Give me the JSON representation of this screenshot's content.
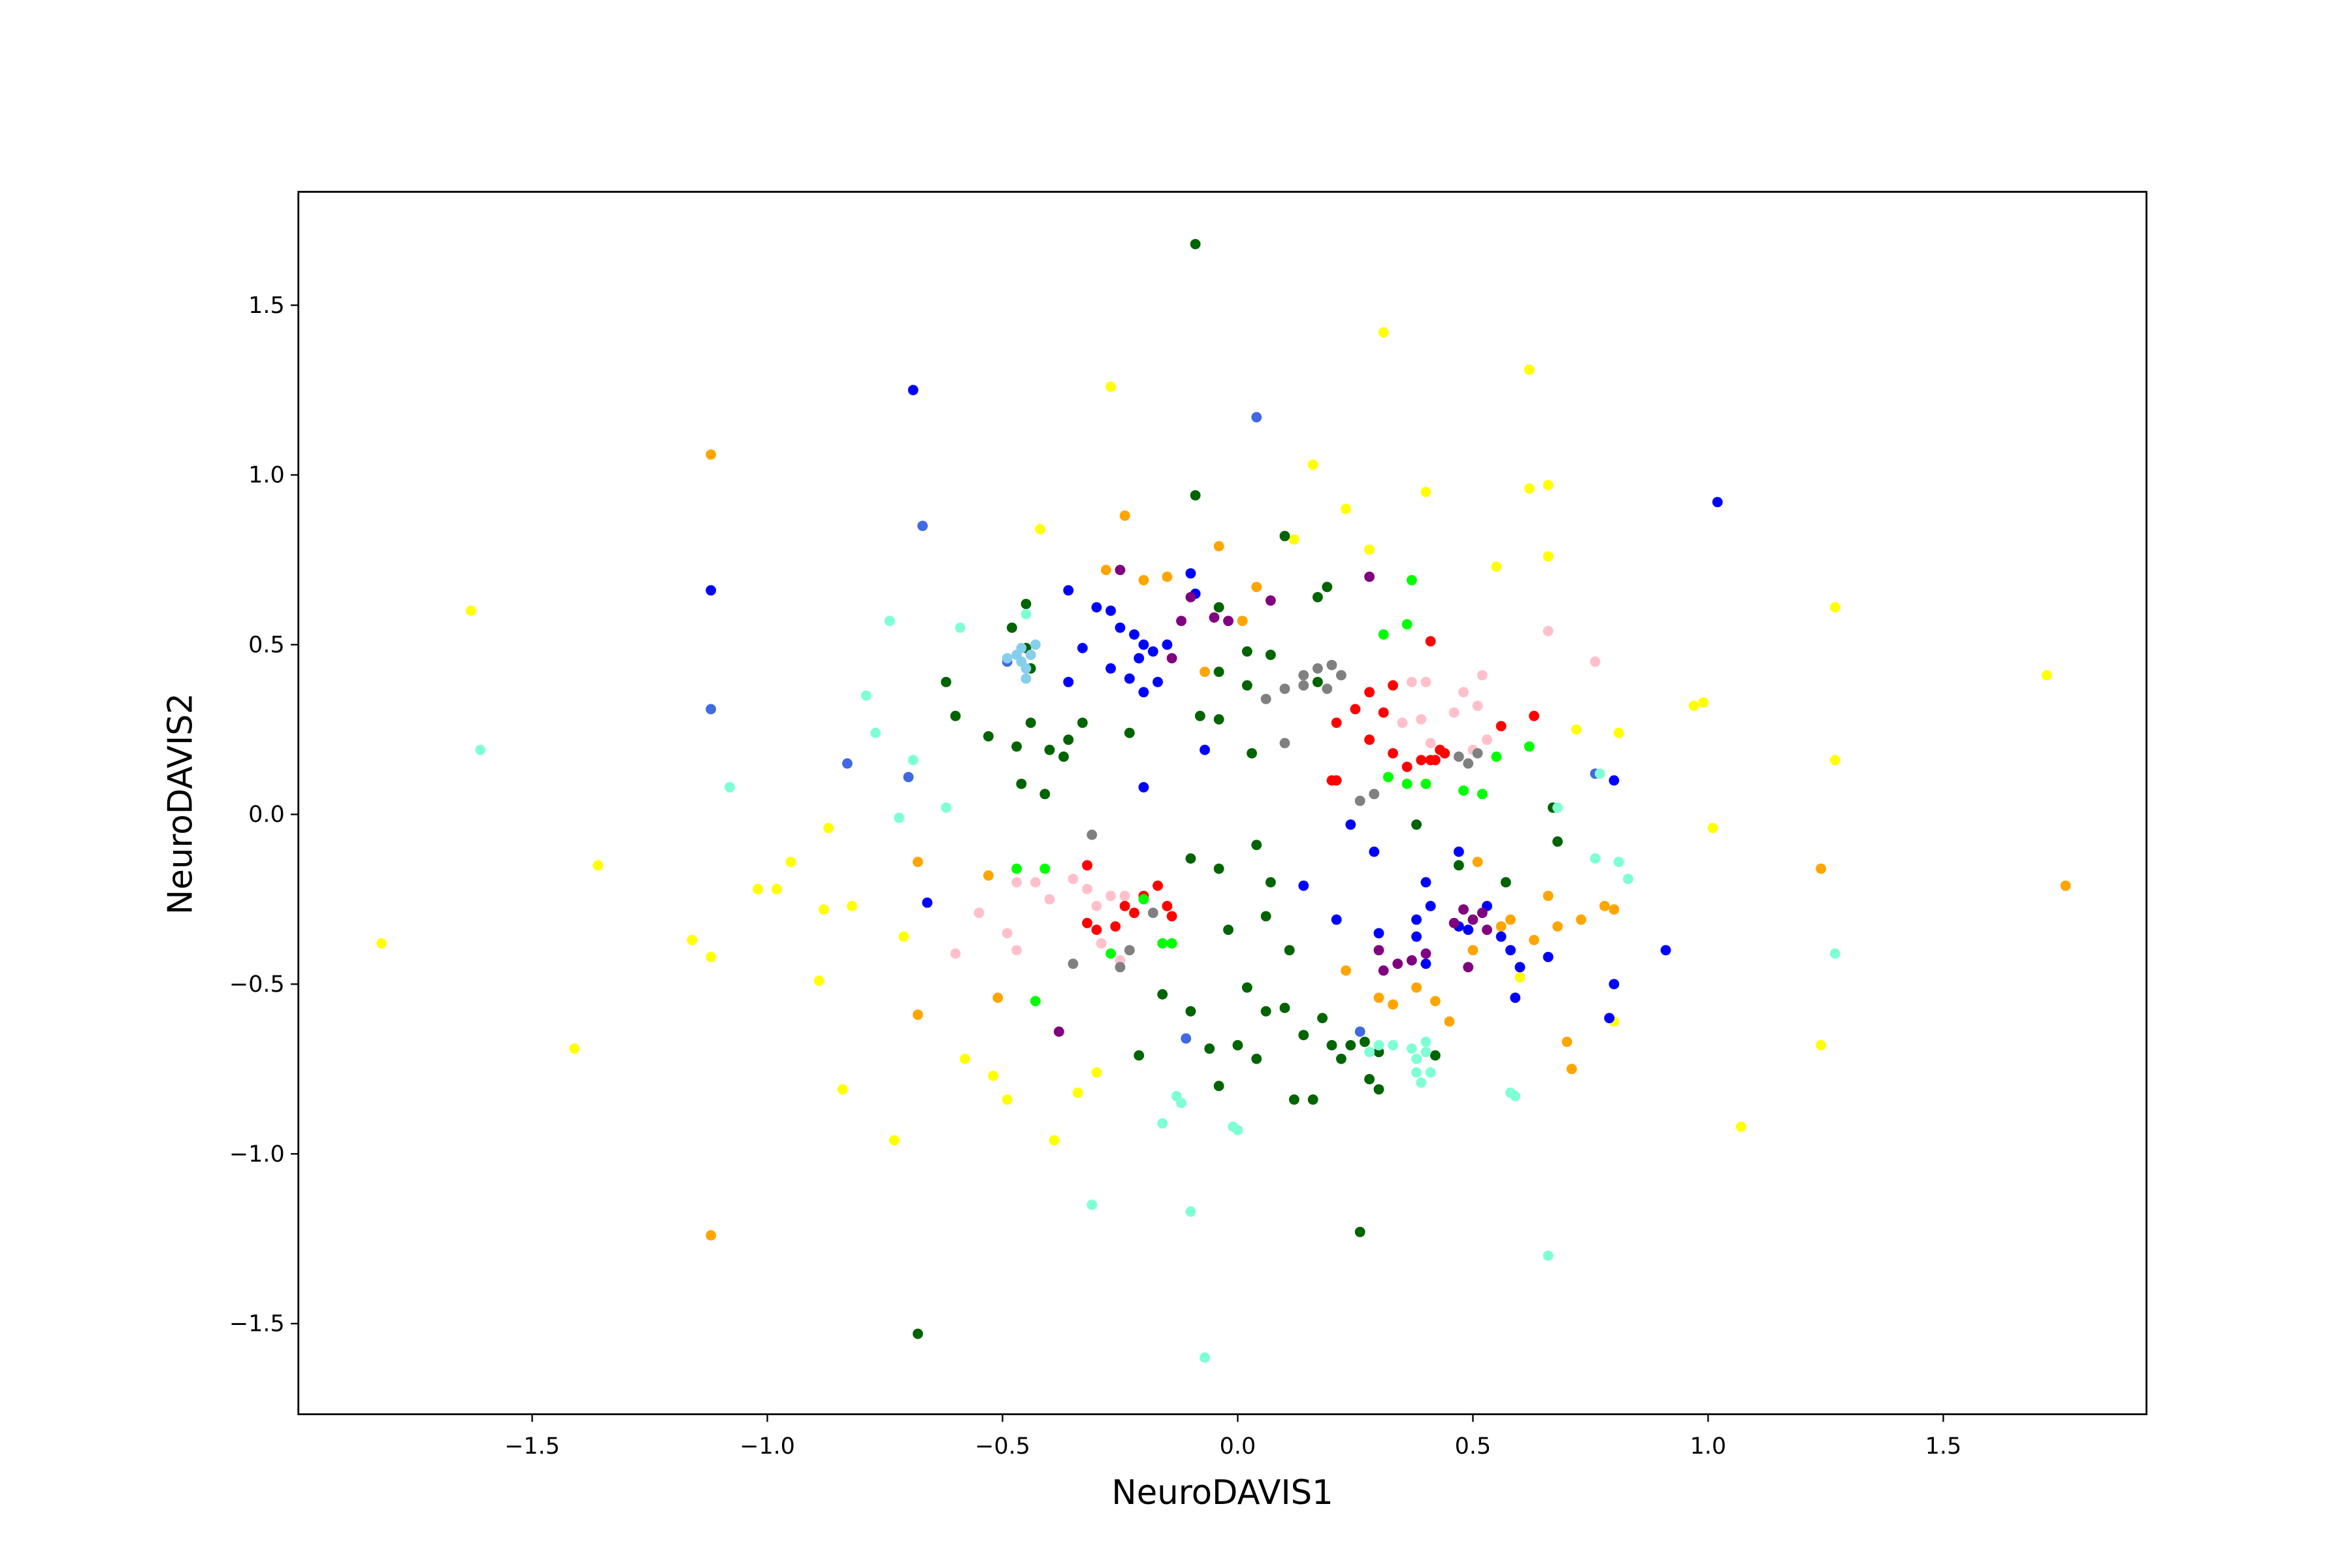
{
  "chart_data": {
    "type": "scatter",
    "xlabel": "NeuroDAVIS1",
    "ylabel": "NeuroDAVIS2",
    "xlim": [
      -1.997,
      1.932
    ],
    "ylim": [
      -1.767,
      1.834
    ],
    "xticks": [
      {
        "value": -1.5,
        "label": "−1.5"
      },
      {
        "value": -1.0,
        "label": "−1.0"
      },
      {
        "value": -0.5,
        "label": "−0.5"
      },
      {
        "value": 0.0,
        "label": "0.0"
      },
      {
        "value": 0.5,
        "label": "0.5"
      },
      {
        "value": 1.0,
        "label": "1.0"
      },
      {
        "value": 1.5,
        "label": "1.5"
      }
    ],
    "yticks": [
      {
        "value": -1.5,
        "label": "−1.5"
      },
      {
        "value": -1.0,
        "label": "−1.0"
      },
      {
        "value": -0.5,
        "label": "−0.5"
      },
      {
        "value": 0.0,
        "label": "0.0"
      },
      {
        "value": 0.5,
        "label": "0.5"
      },
      {
        "value": 1.0,
        "label": "1.0"
      },
      {
        "value": 1.5,
        "label": "1.5"
      }
    ],
    "grid": false,
    "series": [
      {
        "color": "#ffff00",
        "x": [
          -1.82,
          -1.63,
          -1.41,
          -1.36,
          -1.16,
          -1.12,
          -1.02,
          -0.98,
          -0.95,
          -0.89,
          -0.88,
          -0.87,
          -0.84,
          -0.82,
          -0.73,
          -0.71,
          -0.58,
          -0.52,
          -0.49,
          -0.39,
          -0.34,
          -0.3,
          -0.27,
          -0.42,
          0.16,
          0.23,
          0.31,
          0.4,
          0.55,
          0.62,
          0.62,
          0.66,
          0.66,
          0.72,
          0.81,
          0.97,
          0.99,
          1.01,
          1.07,
          1.27,
          1.27,
          1.24,
          1.72,
          0.8,
          0.6,
          0.12,
          0.28
        ],
        "y": [
          -0.38,
          0.6,
          -0.69,
          -0.15,
          -0.37,
          -0.42,
          -0.22,
          -0.22,
          -0.14,
          -0.49,
          -0.28,
          -0.04,
          -0.81,
          -0.27,
          -0.96,
          -0.36,
          -0.72,
          -0.77,
          -0.84,
          -0.96,
          -0.82,
          -0.76,
          1.26,
          0.84,
          1.03,
          0.9,
          1.42,
          0.95,
          0.73,
          0.96,
          1.31,
          0.97,
          0.76,
          0.25,
          0.24,
          0.32,
          0.33,
          -0.04,
          -0.92,
          0.61,
          0.16,
          -0.68,
          0.41,
          -0.61,
          -0.48,
          0.81,
          0.78
        ]
      },
      {
        "color": "#ffa500",
        "x": [
          -1.12,
          -1.12,
          -0.68,
          -0.68,
          -0.51,
          -0.53,
          -0.24,
          -0.28,
          -0.2,
          -0.15,
          -0.1,
          -0.04,
          0.04,
          -0.07,
          0.01,
          0.23,
          0.3,
          0.33,
          0.38,
          0.42,
          0.45,
          0.5,
          0.56,
          0.58,
          0.63,
          0.66,
          0.68,
          0.7,
          0.71,
          0.73,
          0.78,
          0.51,
          1.24,
          1.76,
          0.8
        ],
        "y": [
          1.06,
          -1.24,
          -0.14,
          -0.59,
          -0.54,
          -0.18,
          0.88,
          0.72,
          0.69,
          0.7,
          0.71,
          0.79,
          0.67,
          0.42,
          0.57,
          -0.46,
          -0.54,
          -0.56,
          -0.51,
          -0.55,
          -0.61,
          -0.4,
          -0.33,
          -0.31,
          -0.37,
          -0.24,
          -0.33,
          -0.67,
          -0.75,
          -0.31,
          -0.27,
          -0.14,
          -0.16,
          -0.21,
          -0.28
        ]
      },
      {
        "color": "#0000ff",
        "x": [
          -0.69,
          -1.12,
          -0.36,
          -0.33,
          -0.3,
          -0.27,
          -0.25,
          -0.22,
          -0.2,
          -0.23,
          -0.21,
          -0.18,
          -0.15,
          -0.17,
          -0.2,
          -0.27,
          -0.09,
          -0.07,
          -0.2,
          -0.1,
          -0.36,
          -0.66,
          0.14,
          0.24,
          0.29,
          0.38,
          0.4,
          0.41,
          0.38,
          0.47,
          0.49,
          0.4,
          0.53,
          0.56,
          0.58,
          0.6,
          0.59,
          0.66,
          0.8,
          0.79,
          0.91,
          1.02,
          0.8,
          0.21,
          0.47,
          0.3
        ],
        "y": [
          1.25,
          0.66,
          0.66,
          0.49,
          0.61,
          0.6,
          0.55,
          0.53,
          0.5,
          0.4,
          0.46,
          0.48,
          0.5,
          0.39,
          0.36,
          0.43,
          0.65,
          0.19,
          0.08,
          0.71,
          0.39,
          -0.26,
          -0.21,
          -0.03,
          -0.11,
          -0.31,
          -0.2,
          -0.27,
          -0.36,
          -0.33,
          -0.34,
          -0.44,
          -0.27,
          -0.36,
          -0.4,
          -0.45,
          -0.54,
          -0.42,
          -0.5,
          -0.6,
          -0.4,
          0.92,
          0.1,
          -0.31,
          -0.11,
          -0.35
        ]
      },
      {
        "color": "#4169e1",
        "x": [
          -0.67,
          0.04,
          -1.12,
          -0.83,
          -0.7,
          0.76,
          -0.11,
          0.26,
          -0.49
        ],
        "y": [
          0.85,
          1.17,
          0.31,
          0.15,
          0.11,
          0.12,
          -0.66,
          -0.64,
          0.45
        ]
      },
      {
        "color": "#006400",
        "x": [
          -0.09,
          -0.09,
          0.1,
          0.19,
          0.17,
          -0.45,
          -0.48,
          -0.45,
          -0.44,
          -0.62,
          -0.6,
          -0.53,
          -0.47,
          -0.44,
          -0.4,
          -0.37,
          -0.33,
          -0.36,
          -0.41,
          -0.46,
          -0.23,
          -0.08,
          -0.04,
          0.02,
          0.03,
          -0.04,
          -0.04,
          0.02,
          0.07,
          0.17,
          -0.1,
          -0.04,
          0.04,
          0.07,
          0.06,
          -0.02,
          0.11,
          0.02,
          0.06,
          0.1,
          0.14,
          0.18,
          0.2,
          0.24,
          0.27,
          0.3,
          0.28,
          0.3,
          0.12,
          0.16,
          0.04,
          0.0,
          -0.04,
          -0.16,
          -0.21,
          -0.1,
          -0.06,
          0.38,
          0.47,
          0.57,
          0.68,
          0.67,
          0.26,
          -0.68,
          0.42,
          0.22
        ],
        "y": [
          1.68,
          0.94,
          0.82,
          0.67,
          0.64,
          0.62,
          0.55,
          0.49,
          0.43,
          0.39,
          0.29,
          0.23,
          0.2,
          0.27,
          0.19,
          0.17,
          0.27,
          0.22,
          0.06,
          0.09,
          0.24,
          0.29,
          0.28,
          0.38,
          0.18,
          0.42,
          0.61,
          0.48,
          0.47,
          0.39,
          -0.13,
          -0.16,
          -0.09,
          -0.2,
          -0.3,
          -0.34,
          -0.4,
          -0.51,
          -0.58,
          -0.57,
          -0.65,
          -0.6,
          -0.68,
          -0.68,
          -0.67,
          -0.7,
          -0.78,
          -0.81,
          -0.84,
          -0.84,
          -0.72,
          -0.68,
          -0.8,
          -0.53,
          -0.71,
          -0.58,
          -0.69,
          -0.03,
          -0.15,
          -0.2,
          -0.08,
          0.02,
          -1.23,
          -1.53,
          -0.71,
          -0.72
        ]
      },
      {
        "color": "#800080",
        "x": [
          -0.25,
          -0.12,
          -0.1,
          -0.05,
          -0.02,
          0.07,
          -0.14,
          0.28,
          0.3,
          0.31,
          0.34,
          0.37,
          0.4,
          0.46,
          0.48,
          0.5,
          0.52,
          0.53,
          0.49,
          -0.38
        ],
        "y": [
          0.72,
          0.57,
          0.64,
          0.58,
          0.57,
          0.63,
          0.46,
          0.7,
          -0.4,
          -0.46,
          -0.44,
          -0.43,
          -0.41,
          -0.32,
          -0.28,
          -0.31,
          -0.29,
          -0.34,
          -0.45,
          -0.64
        ]
      },
      {
        "color": "#ff0000",
        "x": [
          0.25,
          0.28,
          0.31,
          0.28,
          0.33,
          0.33,
          0.36,
          0.39,
          0.42,
          0.44,
          0.41,
          0.56,
          0.63,
          0.2,
          0.21,
          0.21,
          0.41,
          -0.32,
          -0.3,
          -0.26,
          -0.24,
          -0.22,
          -0.2,
          -0.17,
          -0.15,
          -0.14,
          -0.32,
          0.43
        ],
        "y": [
          0.31,
          0.36,
          0.3,
          0.22,
          0.38,
          0.18,
          0.14,
          0.16,
          0.16,
          0.18,
          0.51,
          0.26,
          0.29,
          0.1,
          0.27,
          0.1,
          0.16,
          -0.32,
          -0.34,
          -0.33,
          -0.27,
          -0.29,
          -0.24,
          -0.21,
          -0.27,
          -0.3,
          -0.15,
          0.19
        ]
      },
      {
        "color": "#ffc0cb",
        "x": [
          0.37,
          0.4,
          0.39,
          0.35,
          0.41,
          0.46,
          0.48,
          0.51,
          0.53,
          0.52,
          0.66,
          0.76,
          0.5,
          -0.6,
          -0.55,
          -0.49,
          -0.47,
          -0.43,
          -0.4,
          -0.35,
          -0.32,
          -0.3,
          -0.27,
          -0.24,
          -0.29,
          -0.25,
          -0.47
        ],
        "y": [
          0.39,
          0.39,
          0.28,
          0.27,
          0.21,
          0.3,
          0.36,
          0.32,
          0.22,
          0.41,
          0.54,
          0.45,
          0.19,
          -0.41,
          -0.29,
          -0.35,
          -0.4,
          -0.2,
          -0.25,
          -0.19,
          -0.22,
          -0.27,
          -0.24,
          -0.24,
          -0.38,
          -0.43,
          -0.2
        ]
      },
      {
        "color": "#808080",
        "x": [
          0.14,
          0.17,
          0.2,
          0.22,
          0.19,
          0.14,
          0.1,
          0.06,
          0.1,
          0.26,
          0.29,
          0.47,
          0.49,
          0.51,
          -0.31,
          -0.35,
          -0.23,
          -0.25,
          -0.18
        ],
        "y": [
          0.41,
          0.43,
          0.44,
          0.41,
          0.37,
          0.38,
          0.37,
          0.34,
          0.21,
          0.04,
          0.06,
          0.17,
          0.15,
          0.18,
          -0.06,
          -0.44,
          -0.4,
          -0.45,
          -0.29
        ]
      },
      {
        "color": "#00ff00",
        "x": [
          0.37,
          0.31,
          0.36,
          0.32,
          0.36,
          0.4,
          0.48,
          0.52,
          0.55,
          0.62,
          -0.47,
          -0.43,
          -0.27,
          -0.2,
          -0.14,
          -0.16,
          -0.41
        ],
        "y": [
          0.69,
          0.53,
          0.56,
          0.11,
          0.09,
          0.09,
          0.07,
          0.06,
          0.17,
          0.2,
          -0.16,
          -0.55,
          -0.41,
          -0.25,
          -0.38,
          -0.38,
          -0.16
        ]
      },
      {
        "color": "#7fffd4",
        "x": [
          -1.61,
          -1.08,
          -0.79,
          -0.77,
          -0.74,
          -0.59,
          -0.62,
          -0.69,
          -0.72,
          -0.45,
          -0.31,
          -0.1,
          -0.07,
          -0.12,
          -0.13,
          -0.16,
          -0.01,
          0.0,
          0.28,
          0.3,
          0.33,
          0.37,
          0.38,
          0.4,
          0.38,
          0.39,
          0.41,
          0.4,
          0.58,
          0.66,
          0.76,
          0.81,
          0.83,
          1.27,
          0.59,
          0.68,
          0.77
        ],
        "y": [
          0.19,
          0.08,
          0.35,
          0.24,
          0.57,
          0.55,
          0.02,
          0.16,
          -0.01,
          0.59,
          -1.15,
          -1.17,
          -1.6,
          -0.85,
          -0.83,
          -0.91,
          -0.92,
          -0.93,
          -0.7,
          -0.68,
          -0.68,
          -0.69,
          -0.72,
          -0.7,
          -0.76,
          -0.79,
          -0.76,
          -0.67,
          -0.82,
          -1.3,
          -0.13,
          -0.14,
          -0.19,
          -0.41,
          -0.83,
          0.02,
          0.12
        ]
      },
      {
        "color": "#87ceeb",
        "x": [
          -0.49,
          -0.46,
          -0.45,
          -0.44,
          -0.43,
          -0.47,
          -0.45,
          -0.46
        ],
        "y": [
          0.46,
          0.45,
          0.43,
          0.47,
          0.5,
          0.47,
          0.4,
          0.49
        ]
      }
    ]
  }
}
